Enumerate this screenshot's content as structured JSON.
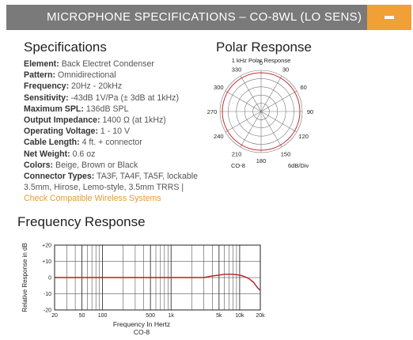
{
  "header": {
    "title": "MICROPHONE SPECIFICATIONS – CO-8WL (LO SENS)",
    "toggle_icon": "minus-icon",
    "toggle_color": "#f0a035",
    "bar_color": "#7a7a7a"
  },
  "specs": {
    "title": "Specifications",
    "items": [
      {
        "label": "Element:",
        "value": "Back Electret Condenser"
      },
      {
        "label": "Pattern:",
        "value": "Omnidirectional"
      },
      {
        "label": "Frequency:",
        "value": "20Hz - 20kHz"
      },
      {
        "label": "Sensitivity:",
        "value": "-43dB 1V/Pa (± 3dB at 1kHz)"
      },
      {
        "label": "Maximum SPL:",
        "value": "136dB SPL"
      },
      {
        "label": "Output Impedance:",
        "value": "1400 Ω (at 1kHz)"
      },
      {
        "label": "Operating Voltage:",
        "value": "1 - 10 V"
      },
      {
        "label": "Cable Length:",
        "value": "4 ft. + connector"
      },
      {
        "label": "Net Weight:",
        "value": "0.6 oz"
      },
      {
        "label": "Colors:",
        "value": "Beige, Brown or Black"
      }
    ],
    "connector": {
      "label": "Connector Types:",
      "value": "TA3F, TA4F, TA5F, lockable 3.5mm, Hirose, Lemo-style, 3.5mm TRRS |",
      "link": "Check Compatible Wireless Systems"
    }
  },
  "polar": {
    "title": "Polar Response",
    "chart_title": "1 kHz Polar Response",
    "angles": [
      "0",
      "30",
      "60",
      "90",
      "120",
      "150",
      "180",
      "210",
      "240",
      "270",
      "300",
      "330"
    ],
    "model": "CO-8",
    "scale": "6dB/Div",
    "pattern_color": "#c03030"
  },
  "frequency": {
    "title": "Frequency Response",
    "ylabel": "Relative Response in dB",
    "xlabel": "Frequency In Hertz",
    "model": "CO-8",
    "yticks": [
      "+20",
      "+10",
      "0",
      "-10",
      "-20"
    ],
    "xticks": [
      "20",
      "50",
      "100",
      "500",
      "1k",
      "5k",
      "10k",
      "20k"
    ],
    "curve_color": "#b02020"
  },
  "chart_data": [
    {
      "type": "line",
      "title": "1 kHz Polar Response",
      "polar": true,
      "angles_deg": [
        0,
        30,
        60,
        90,
        120,
        150,
        180,
        210,
        240,
        270,
        300,
        330
      ],
      "series": [
        {
          "values": [
            0,
            0,
            0,
            0,
            0,
            0,
            0,
            0,
            0,
            0,
            0,
            0
          ]
        }
      ],
      "rings": 5,
      "annotations": [
        "CO-8",
        "6dB/Div"
      ]
    },
    {
      "type": "line",
      "xlabel": "Frequency In Hertz",
      "ylabel": "Relative Response in dB",
      "xscale": "log",
      "xlim": [
        20,
        20000
      ],
      "ylim": [
        -20,
        20
      ],
      "grid": true,
      "annotations": [
        "CO-8"
      ],
      "series": [
        {
          "x": [
            20,
            50,
            100,
            200,
            500,
            1000,
            2000,
            3000,
            4000,
            5000,
            6000,
            7000,
            8000,
            10000,
            12000,
            14000,
            16000,
            18000,
            20000
          ],
          "values": [
            0,
            0,
            0,
            0,
            0,
            0,
            0,
            0,
            1,
            1.5,
            2,
            2,
            2,
            1.5,
            0.5,
            -1,
            -3,
            -6,
            -8
          ]
        }
      ]
    }
  ]
}
